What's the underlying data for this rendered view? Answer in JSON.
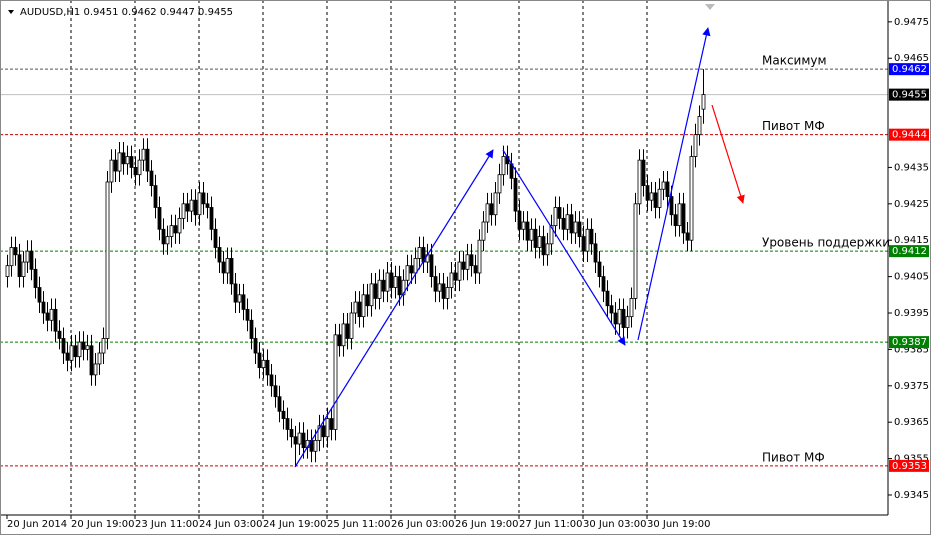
{
  "chart_data": {
    "type": "candlestick",
    "symbol": "AUDUSD,H1",
    "ylim": [
      0.93395,
      0.9481
    ],
    "xlim": [
      -1.75,
      220.25
    ],
    "yticks": [
      0.9475,
      0.9465,
      0.9435,
      0.9425,
      0.9415,
      0.9405,
      0.9395,
      0.9385,
      0.9375,
      0.9365,
      0.9355,
      0.9345
    ],
    "xticks": [
      {
        "value": 0,
        "label": "20 Jun 2014"
      },
      {
        "value": 16,
        "label": "20 Jun 19:00"
      },
      {
        "value": 32,
        "label": "23 Jun 11:00"
      },
      {
        "value": 48,
        "label": "24 Jun 03:00"
      },
      {
        "value": 64,
        "label": "24 Jun 19:00"
      },
      {
        "value": 80,
        "label": "25 Jun 11:00"
      },
      {
        "value": 96,
        "label": "26 Jun 03:00"
      },
      {
        "value": 112,
        "label": "26 Jun 19:00"
      },
      {
        "value": 128,
        "label": "27 Jun 11:00"
      },
      {
        "value": 144,
        "label": "30 Jun 03:00"
      },
      {
        "value": 160,
        "label": "30 Jun 19:00"
      }
    ],
    "grid": true,
    "bull_color": "#ffffff",
    "bear_color": "#000000",
    "wick_color": "#000000",
    "current_price_line_color": "#c0c0c0",
    "current_price_tag_color": "#000000",
    "levels": [
      {
        "value": 0.9462,
        "label": "Максимум",
        "color": "#0000ff",
        "line_color": "#555555"
      },
      {
        "value": 0.9444,
        "label": "Пивот МФ",
        "color": "#ff0000",
        "line_color": "#cc0000"
      },
      {
        "value": 0.9412,
        "label": "Уровень поддержки",
        "color": "#008000",
        "line_color": "#008000"
      },
      {
        "value": 0.9387,
        "color": "#008000",
        "line_color": "#008000"
      },
      {
        "value": 0.9353,
        "label": "Пивот МФ",
        "color": "#ff0000",
        "line_color": "#cc0000"
      }
    ],
    "ohlc": [
      [
        0.9405,
        0.9411,
        0.9402,
        0.9408
      ],
      [
        0.9408,
        0.9416,
        0.9405,
        0.9413
      ],
      [
        0.9413,
        0.9416,
        0.9408,
        0.9411
      ],
      [
        0.9411,
        0.9414,
        0.9402,
        0.9405
      ],
      [
        0.9405,
        0.9412,
        0.9402,
        0.9409
      ],
      [
        0.9409,
        0.9415,
        0.9406,
        0.9412
      ],
      [
        0.9412,
        0.9415,
        0.9404,
        0.9407
      ],
      [
        0.9407,
        0.941,
        0.9399,
        0.9402
      ],
      [
        0.9402,
        0.9405,
        0.9395,
        0.9398
      ],
      [
        0.9398,
        0.9401,
        0.9392,
        0.9395
      ],
      [
        0.9395,
        0.9398,
        0.939,
        0.9393
      ],
      [
        0.9393,
        0.9399,
        0.939,
        0.9396
      ],
      [
        0.9396,
        0.9399,
        0.9387,
        0.939
      ],
      [
        0.939,
        0.9393,
        0.9385,
        0.9388
      ],
      [
        0.9388,
        0.9391,
        0.9381,
        0.9384
      ],
      [
        0.9384,
        0.9387,
        0.9379,
        0.9382
      ],
      [
        0.9382,
        0.9389,
        0.9379,
        0.9386
      ],
      [
        0.9386,
        0.9389,
        0.938,
        0.9383
      ],
      [
        0.9383,
        0.939,
        0.938,
        0.9387
      ],
      [
        0.9387,
        0.939,
        0.9382,
        0.9385
      ],
      [
        0.9385,
        0.9389,
        0.9382,
        0.9386
      ],
      [
        0.9386,
        0.9389,
        0.9375,
        0.9378
      ],
      [
        0.9378,
        0.9384,
        0.9375,
        0.9381
      ],
      [
        0.9381,
        0.9387,
        0.9378,
        0.9384
      ],
      [
        0.9384,
        0.9391,
        0.9381,
        0.9388
      ],
      [
        0.9388,
        0.9434,
        0.9385,
        0.9431
      ],
      [
        0.9431,
        0.944,
        0.9428,
        0.9437
      ],
      [
        0.9437,
        0.944,
        0.9431,
        0.9434
      ],
      [
        0.9434,
        0.9442,
        0.9431,
        0.9439
      ],
      [
        0.9439,
        0.9442,
        0.9433,
        0.9436
      ],
      [
        0.9436,
        0.9441,
        0.9433,
        0.9438
      ],
      [
        0.9438,
        0.9441,
        0.9432,
        0.9435
      ],
      [
        0.9435,
        0.9438,
        0.943,
        0.9433
      ],
      [
        0.9433,
        0.944,
        0.943,
        0.9437
      ],
      [
        0.9437,
        0.9443,
        0.9434,
        0.944
      ],
      [
        0.944,
        0.9443,
        0.9431,
        0.9434
      ],
      [
        0.9434,
        0.9437,
        0.9427,
        0.943
      ],
      [
        0.943,
        0.9433,
        0.9421,
        0.9424
      ],
      [
        0.9424,
        0.9427,
        0.9415,
        0.9418
      ],
      [
        0.9418,
        0.9421,
        0.9411,
        0.9414
      ],
      [
        0.9414,
        0.9419,
        0.9411,
        0.9416
      ],
      [
        0.9416,
        0.9422,
        0.9413,
        0.9419
      ],
      [
        0.9419,
        0.9422,
        0.9414,
        0.9417
      ],
      [
        0.9417,
        0.9424,
        0.9414,
        0.9421
      ],
      [
        0.9421,
        0.9428,
        0.9418,
        0.9425
      ],
      [
        0.9425,
        0.9428,
        0.942,
        0.9423
      ],
      [
        0.9423,
        0.9429,
        0.942,
        0.9426
      ],
      [
        0.9426,
        0.9429,
        0.9419,
        0.9422
      ],
      [
        0.9422,
        0.9431,
        0.9419,
        0.9428
      ],
      [
        0.9428,
        0.9431,
        0.9422,
        0.9425
      ],
      [
        0.9425,
        0.9428,
        0.9421,
        0.9424
      ],
      [
        0.9424,
        0.9427,
        0.9415,
        0.9418
      ],
      [
        0.9418,
        0.9421,
        0.941,
        0.9413
      ],
      [
        0.9413,
        0.9416,
        0.9406,
        0.9409
      ],
      [
        0.9409,
        0.9412,
        0.9403,
        0.9406
      ],
      [
        0.9406,
        0.9413,
        0.9403,
        0.941
      ],
      [
        0.941,
        0.9413,
        0.94,
        0.9403
      ],
      [
        0.9403,
        0.9406,
        0.9395,
        0.9398
      ],
      [
        0.9398,
        0.9403,
        0.9395,
        0.94
      ],
      [
        0.94,
        0.9403,
        0.9393,
        0.9396
      ],
      [
        0.9396,
        0.9399,
        0.939,
        0.9393
      ],
      [
        0.9393,
        0.9396,
        0.9385,
        0.9388
      ],
      [
        0.9388,
        0.9391,
        0.9381,
        0.9384
      ],
      [
        0.9384,
        0.9387,
        0.9377,
        0.938
      ],
      [
        0.938,
        0.9385,
        0.9377,
        0.9382
      ],
      [
        0.9382,
        0.9385,
        0.9375,
        0.9378
      ],
      [
        0.9378,
        0.9381,
        0.9372,
        0.9375
      ],
      [
        0.9375,
        0.9378,
        0.9369,
        0.9372
      ],
      [
        0.9372,
        0.9375,
        0.9365,
        0.9368
      ],
      [
        0.9368,
        0.9371,
        0.9363,
        0.9366
      ],
      [
        0.9366,
        0.9369,
        0.936,
        0.9363
      ],
      [
        0.9363,
        0.9366,
        0.9358,
        0.9361
      ],
      [
        0.9361,
        0.9364,
        0.9353,
        0.9359
      ],
      [
        0.9359,
        0.9365,
        0.9356,
        0.9362
      ],
      [
        0.9362,
        0.9365,
        0.9355,
        0.9358
      ],
      [
        0.9358,
        0.9363,
        0.9355,
        0.936
      ],
      [
        0.936,
        0.9363,
        0.9354,
        0.9357
      ],
      [
        0.9357,
        0.9363,
        0.9354,
        0.936
      ],
      [
        0.936,
        0.9367,
        0.9357,
        0.9364
      ],
      [
        0.9364,
        0.9367,
        0.9358,
        0.9361
      ],
      [
        0.9361,
        0.9369,
        0.9358,
        0.9366
      ],
      [
        0.9366,
        0.9369,
        0.936,
        0.9363
      ],
      [
        0.9363,
        0.9392,
        0.936,
        0.9389
      ],
      [
        0.9389,
        0.9392,
        0.9383,
        0.9386
      ],
      [
        0.9386,
        0.9395,
        0.9383,
        0.9392
      ],
      [
        0.9392,
        0.9395,
        0.9385,
        0.9388
      ],
      [
        0.9388,
        0.9398,
        0.9385,
        0.9395
      ],
      [
        0.9395,
        0.9401,
        0.9392,
        0.9398
      ],
      [
        0.9398,
        0.9401,
        0.9391,
        0.9394
      ],
      [
        0.9394,
        0.9403,
        0.9391,
        0.94
      ],
      [
        0.94,
        0.9403,
        0.9394,
        0.9397
      ],
      [
        0.9397,
        0.9406,
        0.9394,
        0.9403
      ],
      [
        0.9403,
        0.9406,
        0.9396,
        0.9399
      ],
      [
        0.9399,
        0.9407,
        0.9396,
        0.9404
      ],
      [
        0.9404,
        0.9407,
        0.9398,
        0.9401
      ],
      [
        0.9401,
        0.9409,
        0.9398,
        0.9406
      ],
      [
        0.9406,
        0.9409,
        0.9399,
        0.9402
      ],
      [
        0.9402,
        0.9408,
        0.9399,
        0.9405
      ],
      [
        0.9405,
        0.9408,
        0.9397,
        0.94
      ],
      [
        0.94,
        0.9407,
        0.9397,
        0.9404
      ],
      [
        0.9404,
        0.9411,
        0.9401,
        0.9408
      ],
      [
        0.9408,
        0.9411,
        0.9403,
        0.9406
      ],
      [
        0.9406,
        0.9413,
        0.9403,
        0.941
      ],
      [
        0.941,
        0.9416,
        0.9407,
        0.9413
      ],
      [
        0.9413,
        0.9416,
        0.9406,
        0.9409
      ],
      [
        0.9409,
        0.9414,
        0.9406,
        0.9411
      ],
      [
        0.9411,
        0.9414,
        0.9402,
        0.9405
      ],
      [
        0.9405,
        0.9408,
        0.9398,
        0.9401
      ],
      [
        0.9401,
        0.9406,
        0.9398,
        0.9403
      ],
      [
        0.9403,
        0.9406,
        0.9396,
        0.9399
      ],
      [
        0.9399,
        0.9405,
        0.9396,
        0.9402
      ],
      [
        0.9402,
        0.9409,
        0.9399,
        0.9406
      ],
      [
        0.9406,
        0.9409,
        0.9401,
        0.9404
      ],
      [
        0.9404,
        0.9412,
        0.9401,
        0.9409
      ],
      [
        0.9409,
        0.9412,
        0.9404,
        0.9407
      ],
      [
        0.9407,
        0.9414,
        0.9404,
        0.9411
      ],
      [
        0.9411,
        0.9414,
        0.9405,
        0.9408
      ],
      [
        0.9408,
        0.9411,
        0.9403,
        0.9406
      ],
      [
        0.9406,
        0.9418,
        0.9403,
        0.9415
      ],
      [
        0.9415,
        0.9423,
        0.9412,
        0.942
      ],
      [
        0.942,
        0.9428,
        0.9417,
        0.9425
      ],
      [
        0.9425,
        0.9428,
        0.9419,
        0.9422
      ],
      [
        0.9422,
        0.9431,
        0.9419,
        0.9428
      ],
      [
        0.9428,
        0.9436,
        0.9425,
        0.9433
      ],
      [
        0.9433,
        0.9441,
        0.943,
        0.9438
      ],
      [
        0.9438,
        0.9441,
        0.9433,
        0.9436
      ],
      [
        0.9436,
        0.9439,
        0.9429,
        0.9432
      ],
      [
        0.9432,
        0.9435,
        0.942,
        0.9423
      ],
      [
        0.9423,
        0.9426,
        0.9415,
        0.9418
      ],
      [
        0.9418,
        0.9423,
        0.9415,
        0.942
      ],
      [
        0.942,
        0.9423,
        0.9412,
        0.9415
      ],
      [
        0.9415,
        0.9421,
        0.9412,
        0.9418
      ],
      [
        0.9418,
        0.9421,
        0.941,
        0.9413
      ],
      [
        0.9413,
        0.9419,
        0.941,
        0.9416
      ],
      [
        0.9416,
        0.9419,
        0.9408,
        0.9411
      ],
      [
        0.9411,
        0.9417,
        0.9408,
        0.9414
      ],
      [
        0.9414,
        0.9422,
        0.9411,
        0.9419
      ],
      [
        0.9419,
        0.9427,
        0.9416,
        0.9424
      ],
      [
        0.9424,
        0.9427,
        0.9418,
        0.9421
      ],
      [
        0.9421,
        0.9424,
        0.9415,
        0.9418
      ],
      [
        0.9418,
        0.9425,
        0.9415,
        0.9422
      ],
      [
        0.9422,
        0.9425,
        0.9414,
        0.9417
      ],
      [
        0.9417,
        0.9423,
        0.9414,
        0.942
      ],
      [
        0.942,
        0.9423,
        0.9413,
        0.9416
      ],
      [
        0.9416,
        0.9419,
        0.9409,
        0.9412
      ],
      [
        0.9412,
        0.9421,
        0.9409,
        0.9418
      ],
      [
        0.9418,
        0.9421,
        0.9411,
        0.9414
      ],
      [
        0.9414,
        0.9417,
        0.9406,
        0.9409
      ],
      [
        0.9409,
        0.9412,
        0.9402,
        0.9405
      ],
      [
        0.9405,
        0.9408,
        0.9398,
        0.9401
      ],
      [
        0.9401,
        0.9404,
        0.9394,
        0.9397
      ],
      [
        0.9397,
        0.94,
        0.9392,
        0.9395
      ],
      [
        0.9395,
        0.9398,
        0.9389,
        0.9392
      ],
      [
        0.9392,
        0.9399,
        0.9389,
        0.9396
      ],
      [
        0.9396,
        0.9399,
        0.9388,
        0.9391
      ],
      [
        0.9391,
        0.9397,
        0.9388,
        0.9394
      ],
      [
        0.9394,
        0.9402,
        0.9391,
        0.9399
      ],
      [
        0.9399,
        0.9428,
        0.9396,
        0.9425
      ],
      [
        0.9425,
        0.944,
        0.9422,
        0.9437
      ],
      [
        0.9437,
        0.944,
        0.9427,
        0.943
      ],
      [
        0.943,
        0.9433,
        0.9423,
        0.9426
      ],
      [
        0.9426,
        0.9431,
        0.9423,
        0.9428
      ],
      [
        0.9428,
        0.9431,
        0.9421,
        0.9424
      ],
      [
        0.9424,
        0.9432,
        0.9421,
        0.9429
      ],
      [
        0.9429,
        0.9434,
        0.9426,
        0.9431
      ],
      [
        0.9431,
        0.9434,
        0.9424,
        0.9427
      ],
      [
        0.9427,
        0.943,
        0.9419,
        0.9422
      ],
      [
        0.9422,
        0.9425,
        0.9416,
        0.9419
      ],
      [
        0.9419,
        0.9428,
        0.9416,
        0.9425
      ],
      [
        0.9425,
        0.9428,
        0.9414,
        0.9417
      ],
      [
        0.9417,
        0.942,
        0.9412,
        0.9415
      ],
      [
        0.9415,
        0.9441,
        0.9412,
        0.9438
      ],
      [
        0.9438,
        0.9447,
        0.9435,
        0.9444
      ],
      [
        0.9444,
        0.9452,
        0.9441,
        0.9449
      ],
      [
        0.9451,
        0.9462,
        0.9447,
        0.9455
      ]
    ]
  }
}
